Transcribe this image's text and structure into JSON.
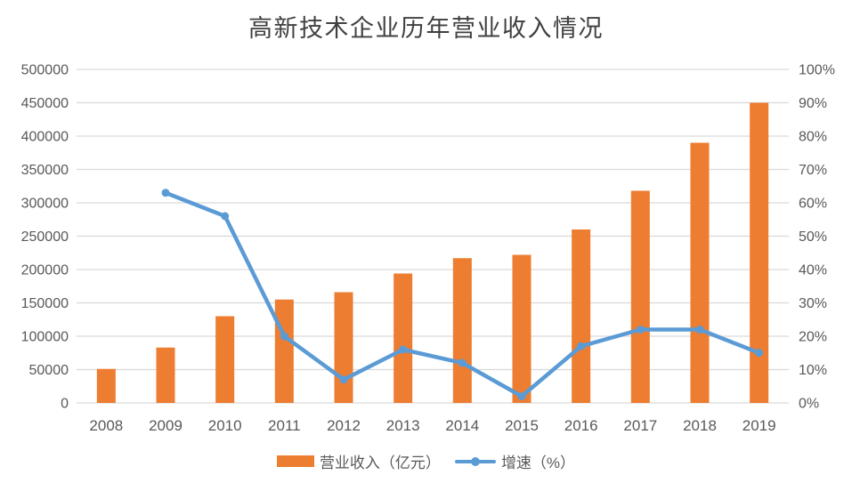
{
  "title": "高新技术企业历年营业收入情况",
  "colors": {
    "bar": "#ED7D31",
    "line": "#5B9BD5",
    "grid": "#D9D9D9",
    "axis_text": "#595959",
    "title_text": "#404040",
    "background": "#FFFFFF"
  },
  "legend": {
    "revenue_label": "营业收入（亿元）",
    "growth_label": "增速（%）"
  },
  "chart_data": {
    "type": "bar",
    "subtype": "bar-line-combo",
    "title": "高新技术企业历年营业收入情况",
    "categories": [
      "2008",
      "2009",
      "2010",
      "2011",
      "2012",
      "2013",
      "2014",
      "2015",
      "2016",
      "2017",
      "2018",
      "2019"
    ],
    "series": [
      {
        "name": "营业收入（亿元）",
        "type": "bar",
        "axis": "left",
        "color": "#ED7D31",
        "values": [
          51000,
          83000,
          130000,
          155000,
          166000,
          194000,
          217000,
          222000,
          260000,
          318000,
          390000,
          450000
        ]
      },
      {
        "name": "增速（%）",
        "type": "line",
        "axis": "right",
        "color": "#5B9BD5",
        "values": [
          null,
          63,
          56,
          20,
          7,
          16,
          12,
          2,
          17,
          22,
          22,
          15
        ]
      }
    ],
    "left_axis": {
      "min": 0,
      "max": 500000,
      "step": 50000,
      "tick_labels": [
        "500000",
        "450000",
        "400000",
        "350000",
        "300000",
        "250000",
        "200000",
        "150000",
        "100000",
        "50000",
        "0"
      ]
    },
    "right_axis": {
      "min": 0,
      "max": 100,
      "step": 10,
      "unit": "%",
      "tick_labels": [
        "100%",
        "90%",
        "80%",
        "70%",
        "60%",
        "50%",
        "40%",
        "30%",
        "20%",
        "10%",
        "0%"
      ]
    },
    "xlabel": "",
    "ylabel": "",
    "grid": "horizontal",
    "legend_position": "bottom"
  }
}
